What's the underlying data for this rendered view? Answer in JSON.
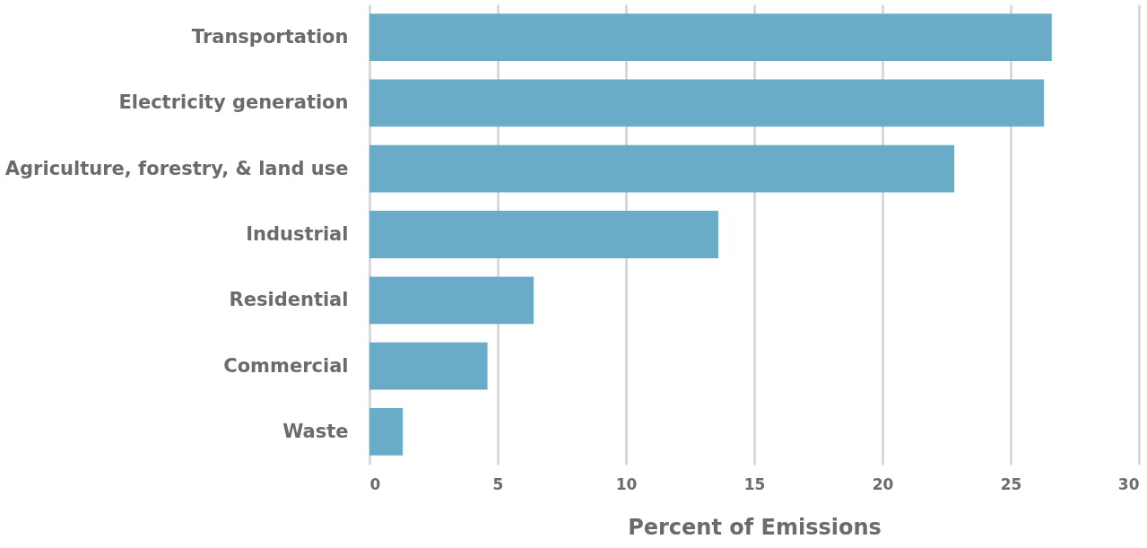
{
  "chart_data": {
    "type": "bar",
    "orientation": "horizontal",
    "xlabel": "Percent of Emissions",
    "categories": [
      "Transportation",
      "Electricity generation",
      "Agriculture, forestry, & land use",
      "Industrial",
      "Residential",
      "Commercial",
      "Waste"
    ],
    "values": [
      26.6,
      26.3,
      22.8,
      13.6,
      6.4,
      4.6,
      1.3
    ],
    "color": "#6aabc8",
    "xlim": [
      0,
      30
    ],
    "xticks": [
      0,
      5,
      10,
      15,
      20,
      25,
      30
    ],
    "grid": "x"
  }
}
